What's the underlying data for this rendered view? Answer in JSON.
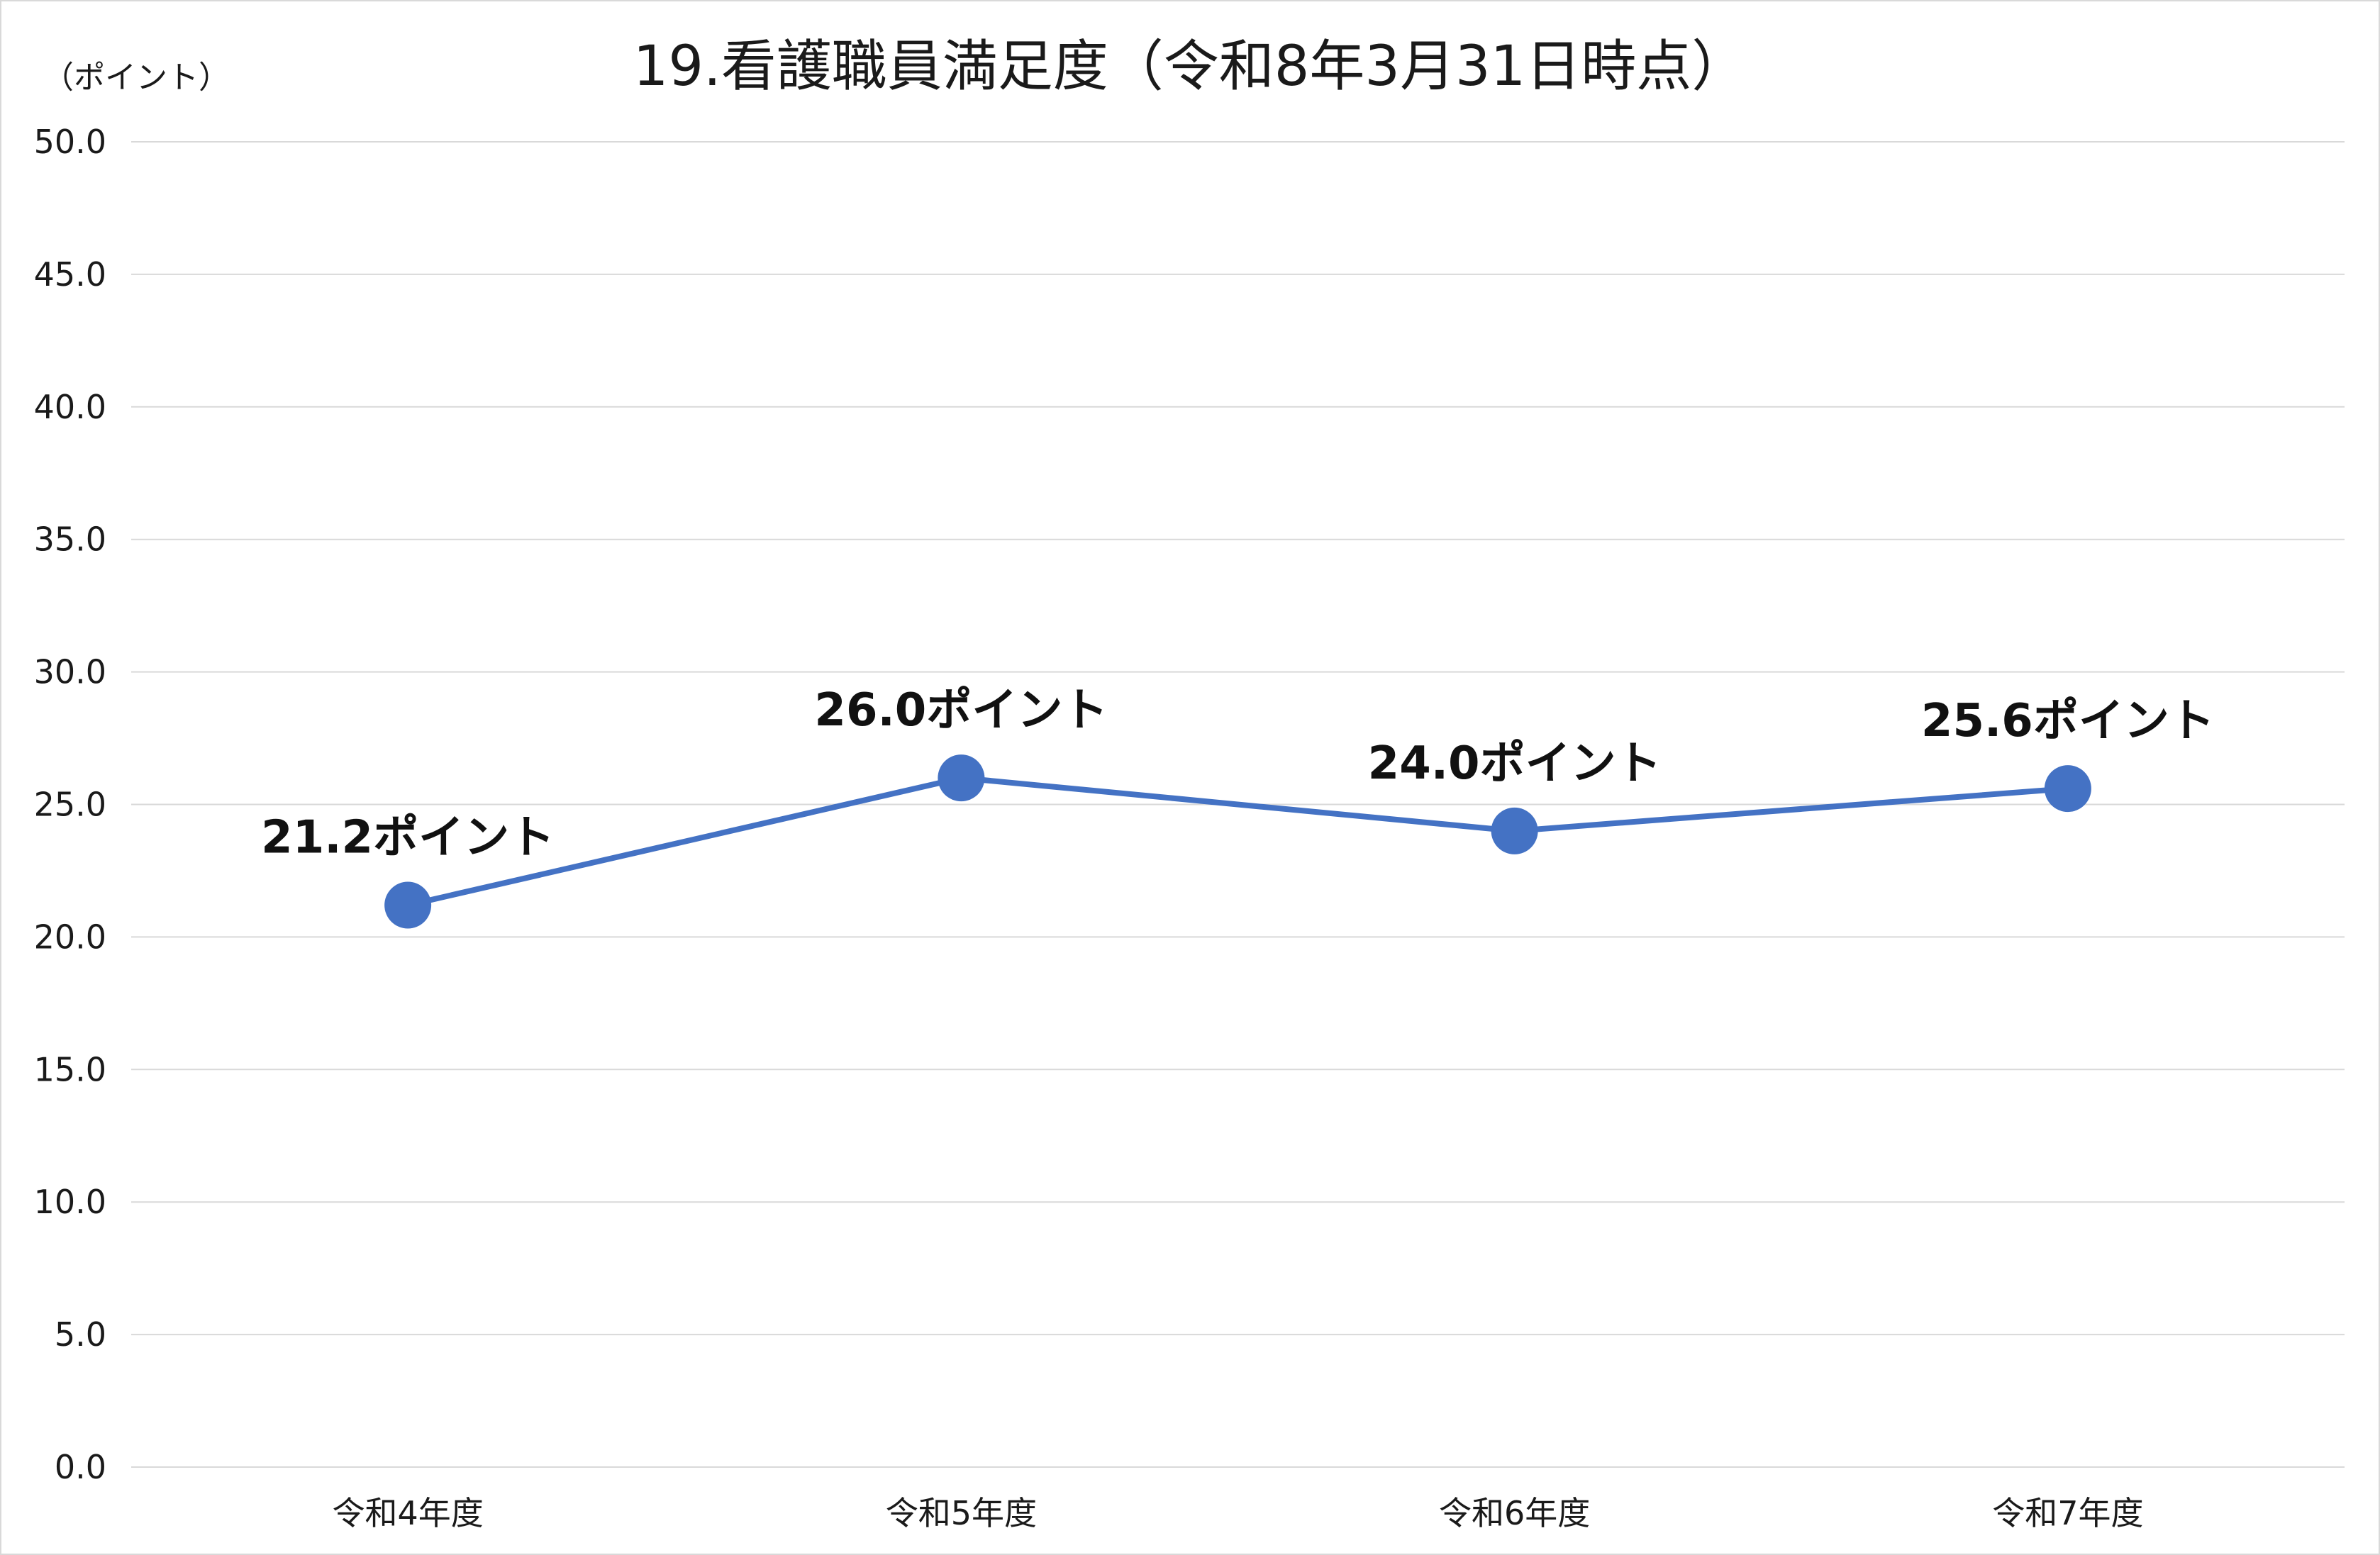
{
  "chart_data": {
    "type": "line",
    "title": "19.看護職員満足度（令和8年3月31日時点）",
    "ylabel": "（ポイント）",
    "xlabel": "",
    "ylim": [
      0,
      50
    ],
    "yticks": [
      "0.0",
      "5.0",
      "10.0",
      "15.0",
      "20.0",
      "25.0",
      "30.0",
      "35.0",
      "40.0",
      "45.0",
      "50.0"
    ],
    "grid": true,
    "categories": [
      "令和4年度",
      "令和5年度",
      "令和6年度",
      "令和7年度"
    ],
    "series": [
      {
        "values": [
          21.2,
          26.0,
          24.0,
          25.6
        ],
        "data_labels": [
          "21.2ポイント",
          "26.0ポイント",
          "24.0ポイント",
          "25.6ポイント"
        ],
        "color": "#4472c4"
      }
    ]
  }
}
